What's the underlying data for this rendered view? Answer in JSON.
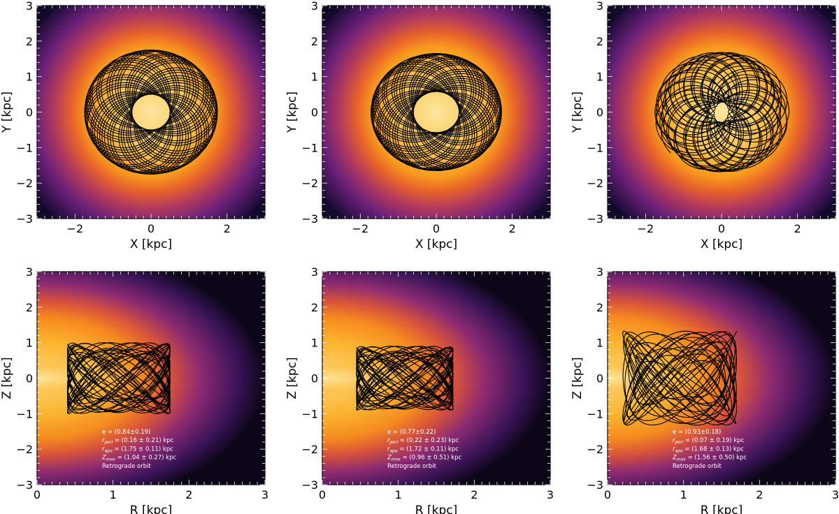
{
  "chart_data": [
    {
      "panel": "top-left",
      "type": "density-map-orbit",
      "xlabel": "X [kpc]",
      "ylabel": "Y [kpc]",
      "xlim": [
        -3,
        3
      ],
      "ylim": [
        -3,
        3
      ],
      "xticks": [
        "−2",
        "0",
        "2"
      ],
      "xtick_values": [
        -2,
        0,
        2
      ],
      "yticks": [
        "−3",
        "−2",
        "−1",
        "0",
        "1",
        "2",
        "3"
      ],
      "ytick_values": [
        -3,
        -2,
        -1,
        0,
        1,
        2,
        3
      ],
      "orbit": {
        "radius_min": 0.5,
        "radius_max": 1.75
      },
      "colormap": "inferno"
    },
    {
      "panel": "top-middle",
      "type": "density-map-orbit",
      "xlabel": "X [kpc]",
      "ylabel": "Y [kpc]",
      "xlim": [
        -3,
        3
      ],
      "ylim": [
        -3,
        3
      ],
      "xticks": [
        "−2",
        "0",
        "2"
      ],
      "xtick_values": [
        -2,
        0,
        2
      ],
      "yticks": [
        "−3",
        "−2",
        "−1",
        "0",
        "1",
        "2",
        "3"
      ],
      "ytick_values": [
        -3,
        -2,
        -1,
        0,
        1,
        2,
        3
      ],
      "orbit": {
        "radius_min": 0.6,
        "radius_max": 1.72
      },
      "colormap": "inferno"
    },
    {
      "panel": "top-right",
      "type": "density-map-orbit",
      "xlabel": "X [kpc]",
      "ylabel": "Y [kpc]",
      "xlim": [
        -3,
        3
      ],
      "ylim": [
        -3,
        3
      ],
      "xticks": [
        "−2",
        "0",
        "2"
      ],
      "xtick_values": [
        -2,
        0,
        2
      ],
      "yticks": [
        "−3",
        "−2",
        "−1",
        "0",
        "1",
        "2",
        "3"
      ],
      "ytick_values": [
        -3,
        -2,
        -1,
        0,
        1,
        2,
        3
      ],
      "orbit": {
        "radius_min": 0.3,
        "radius_max": 1.68
      },
      "colormap": "inferno"
    },
    {
      "panel": "bottom-left",
      "type": "density-map-orbit",
      "xlabel": "R [kpc]",
      "ylabel": "Z [kpc]",
      "xlim": [
        0,
        3
      ],
      "ylim": [
        -3,
        3
      ],
      "xticks": [
        "0",
        "1",
        "2",
        "3"
      ],
      "xtick_values": [
        0,
        1,
        2,
        3
      ],
      "yticks": [
        "−3",
        "−2",
        "−1",
        "0",
        "1",
        "2",
        "3"
      ],
      "ytick_values": [
        -3,
        -2,
        -1,
        0,
        1,
        2,
        3
      ],
      "orbit": {
        "r_min": 0.4,
        "r_max": 1.75,
        "z_max": 1.0
      },
      "colormap": "inferno",
      "annotations": {
        "e": "e  = (0.84±0.19)",
        "rperi_value": " = (0.16 ± 0.21) kpc",
        "rapo_value": " = (1.75 ± 0.11) kpc",
        "zmax_value": " = (1.04 ± 0.27) kpc",
        "orbit_type": "Retrograde orbit"
      }
    },
    {
      "panel": "bottom-middle",
      "type": "density-map-orbit",
      "xlabel": "R [kpc]",
      "ylabel": "Z [kpc]",
      "xlim": [
        0,
        3
      ],
      "ylim": [
        -3,
        3
      ],
      "xticks": [
        "0",
        "1",
        "2",
        "3"
      ],
      "xtick_values": [
        0,
        1,
        2,
        3
      ],
      "yticks": [
        "−3",
        "−2",
        "−1",
        "0",
        "1",
        "2",
        "3"
      ],
      "ytick_values": [
        -3,
        -2,
        -1,
        0,
        1,
        2,
        3
      ],
      "orbit": {
        "r_min": 0.45,
        "r_max": 1.72,
        "z_max": 0.9
      },
      "colormap": "inferno",
      "annotations": {
        "e": "e  = (0.77±0.22)",
        "rperi_value": " = (0.22 ± 0.23) kpc",
        "rapo_value": " = (1.72 ± 0.11) kpc",
        "zmax_value": " = (0.96 ± 0.51) kpc",
        "orbit_type": "Retrograde orbit"
      }
    },
    {
      "panel": "bottom-right",
      "type": "density-map-orbit",
      "xlabel": "R [kpc]",
      "ylabel": "Z [kpc]",
      "xlim": [
        0,
        3
      ],
      "ylim": [
        -3,
        3
      ],
      "xticks": [
        "0",
        "1",
        "2",
        "3"
      ],
      "xtick_values": [
        0,
        1,
        2,
        3
      ],
      "yticks": [
        "−3",
        "−2",
        "−1",
        "0",
        "1",
        "2",
        "3"
      ],
      "ytick_values": [
        -3,
        -2,
        -1,
        0,
        1,
        2,
        3
      ],
      "orbit": {
        "r_min": 0.07,
        "r_max": 1.68,
        "z_max": 1.56
      },
      "colormap": "inferno",
      "annotations": {
        "e": "e  = (0.93±0.18)",
        "rperi_value": " = (0.07 ± 0.19) kpc",
        "rapo_value": " = (1.68 ± 0.13) kpc",
        "zmax_value": " = (1.56 ± 0.50) kpc",
        "orbit_type": "Retrograde orbit"
      }
    }
  ],
  "labels": {
    "r_peri_sym": "r",
    "r_peri_sub": "peri",
    "r_apo_sym": "r",
    "r_apo_sub": "apo",
    "z_max_sym": "Z",
    "z_max_sub": "max"
  }
}
